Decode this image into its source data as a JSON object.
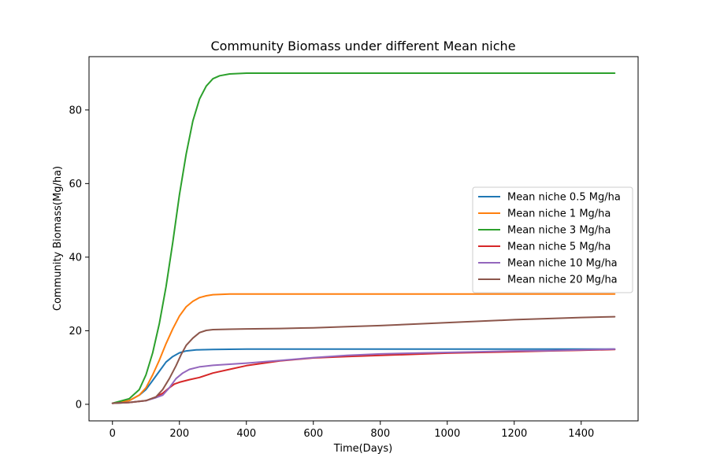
{
  "chart_data": {
    "type": "line",
    "title": "Community Biomass under different Mean niche",
    "xlabel": "Time(Days)",
    "ylabel": "Community Biomass(Mg/ha)",
    "xlim": [
      -70,
      1570
    ],
    "ylim": [
      -4.5,
      94.5
    ],
    "xticks": [
      0,
      200,
      400,
      600,
      800,
      1000,
      1200,
      1400
    ],
    "yticks": [
      0,
      20,
      40,
      60,
      80
    ],
    "grid": false,
    "legend_position": "center-right",
    "series": [
      {
        "name": "Mean niche 0.5 Mg/ha",
        "color": "#1f77b4",
        "x": [
          0,
          50,
          80,
          100,
          120,
          140,
          160,
          180,
          200,
          220,
          250,
          300,
          400,
          600,
          800,
          1000,
          1200,
          1500
        ],
        "y": [
          0.3,
          1.0,
          2.5,
          4.0,
          6.5,
          9.0,
          11.5,
          13.0,
          14.0,
          14.5,
          14.8,
          14.9,
          15.0,
          15.0,
          15.0,
          15.0,
          15.0,
          15.0
        ]
      },
      {
        "name": "Mean niche 1 Mg/ha",
        "color": "#ff7f0e",
        "x": [
          0,
          50,
          80,
          100,
          120,
          140,
          160,
          180,
          200,
          220,
          240,
          260,
          280,
          300,
          350,
          400,
          600,
          800,
          1000,
          1200,
          1500
        ],
        "y": [
          0.3,
          1.0,
          2.5,
          4.5,
          8.0,
          12.0,
          16.5,
          20.5,
          24.0,
          26.5,
          28.0,
          29.0,
          29.5,
          29.8,
          30.0,
          30.0,
          30.0,
          30.0,
          30.0,
          30.0,
          30.0
        ]
      },
      {
        "name": "Mean niche 3 Mg/ha",
        "color": "#2ca02c",
        "x": [
          0,
          50,
          80,
          100,
          120,
          140,
          160,
          180,
          200,
          220,
          240,
          260,
          280,
          300,
          320,
          350,
          400,
          500,
          600,
          800,
          1000,
          1200,
          1500
        ],
        "y": [
          0.3,
          1.5,
          4.0,
          8.0,
          14.0,
          22.0,
          32.0,
          44.0,
          57.0,
          68.0,
          77.0,
          83.0,
          86.5,
          88.5,
          89.3,
          89.8,
          90.0,
          90.0,
          90.0,
          90.0,
          90.0,
          90.0,
          90.0
        ]
      },
      {
        "name": "Mean niche 5 Mg/ha",
        "color": "#d62728",
        "x": [
          0,
          50,
          100,
          130,
          150,
          170,
          185,
          200,
          230,
          260,
          300,
          350,
          400,
          500,
          600,
          700,
          800,
          900,
          1000,
          1100,
          1200,
          1300,
          1400,
          1500
        ],
        "y": [
          0.3,
          0.5,
          1.0,
          2.0,
          3.0,
          4.5,
          5.5,
          6.0,
          6.7,
          7.3,
          8.5,
          9.5,
          10.5,
          11.8,
          12.6,
          13.0,
          13.3,
          13.6,
          13.9,
          14.1,
          14.3,
          14.5,
          14.7,
          14.9
        ]
      },
      {
        "name": "Mean niche 10 Mg/ha",
        "color": "#9467bd",
        "x": [
          0,
          50,
          100,
          130,
          150,
          170,
          190,
          210,
          230,
          260,
          300,
          350,
          400,
          500,
          600,
          700,
          800,
          900,
          1000,
          1100,
          1200,
          1300,
          1400,
          1500
        ],
        "y": [
          0.3,
          0.5,
          1.0,
          1.8,
          2.5,
          4.5,
          7.0,
          8.5,
          9.5,
          10.2,
          10.6,
          10.9,
          11.2,
          11.9,
          12.7,
          13.3,
          13.7,
          13.9,
          14.1,
          14.3,
          14.5,
          14.6,
          14.8,
          15.0
        ]
      },
      {
        "name": "Mean niche 20 Mg/ha",
        "color": "#8c564b",
        "x": [
          0,
          50,
          100,
          130,
          150,
          170,
          190,
          205,
          220,
          240,
          260,
          280,
          300,
          350,
          400,
          500,
          600,
          700,
          800,
          900,
          1000,
          1100,
          1200,
          1300,
          1400,
          1500
        ],
        "y": [
          0.3,
          0.5,
          1.0,
          2.0,
          4.0,
          7.0,
          10.5,
          13.5,
          16.0,
          18.0,
          19.5,
          20.1,
          20.3,
          20.4,
          20.5,
          20.6,
          20.8,
          21.1,
          21.4,
          21.8,
          22.2,
          22.6,
          23.0,
          23.3,
          23.6,
          23.8
        ]
      }
    ]
  }
}
